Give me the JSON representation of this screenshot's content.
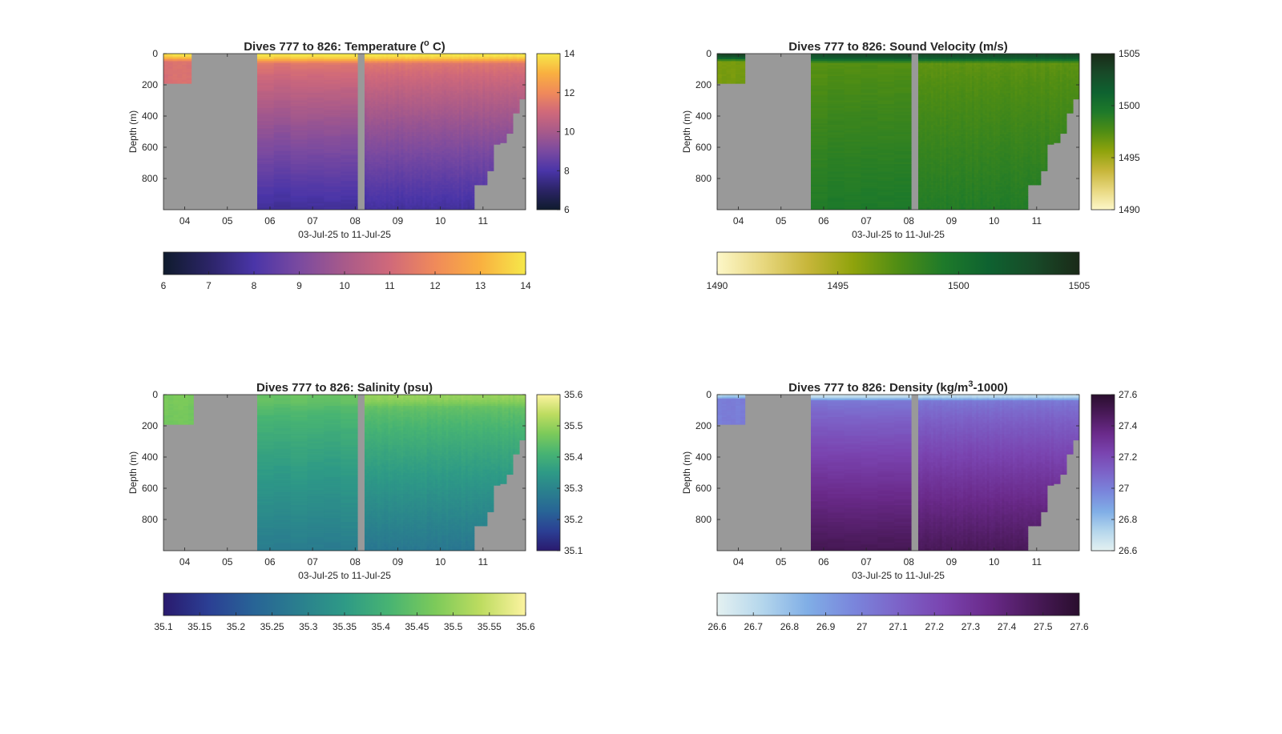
{
  "figure": {
    "background": "#ffffff",
    "missing_color": "#999999"
  },
  "chart_data": [
    {
      "id": "temperature",
      "type": "heatmap",
      "title": "Dives 777 to 826: Temperature (",
      "title_sup": "o",
      "title_end": " C)",
      "xlabel": "03-Jul-25 to 11-Jul-25",
      "ylabel": "Depth (m)",
      "x_range_days": [
        3.5,
        12.0
      ],
      "xticks": [
        "04",
        "05",
        "06",
        "07",
        "08",
        "09",
        "10",
        "11"
      ],
      "y_range": [
        0,
        1000
      ],
      "y_reversed": true,
      "yticks": [
        "0",
        "200",
        "400",
        "600",
        "800"
      ],
      "colorbar_range": [
        6,
        14
      ],
      "colorbar_ticks": [
        "6",
        "8",
        "10",
        "12",
        "14"
      ],
      "horizontal_colorbar_ticks": [
        "6",
        "7",
        "8",
        "9",
        "10",
        "11",
        "12",
        "13",
        "14"
      ],
      "colormap": [
        "#0f1b2d",
        "#2b2466",
        "#4a35a8",
        "#7a4aa0",
        "#a85a8a",
        "#d0697a",
        "#f08a5a",
        "#f9b040",
        "#f6e84a"
      ],
      "segments": [
        {
          "x_start": 3.5,
          "x_end": 4.15,
          "max_depth": [
            190,
            190
          ],
          "surface_value": 13.9,
          "mix_depth": 50,
          "mid_value": 11.3,
          "deep_value": 11.0
        },
        {
          "x_start": 5.7,
          "x_end": 8.05,
          "max_depth": [
            1000,
            1000
          ],
          "surface_value": 14.0,
          "mix_depth": 60,
          "mid_value": 11.5,
          "deep_value": 7.7
        },
        {
          "x_start": 8.22,
          "x_end": 12.0,
          "max_depth": [
            1000,
            1000,
            1000,
            1000,
            1000,
            1000,
            1000,
            1000,
            1000,
            1000,
            1000,
            1000,
            1000,
            1000,
            1000,
            1000,
            1000,
            840,
            840,
            750,
            580,
            570,
            510,
            380,
            290
          ],
          "surface_value": 14.0,
          "mix_depth": 60,
          "mid_value": 11.5,
          "deep_value": 7.8
        }
      ]
    },
    {
      "id": "sound_velocity",
      "type": "heatmap",
      "title": "Dives 777 to 826: Sound Velocity (m/s)",
      "title_sup": "",
      "title_end": "",
      "xlabel": "03-Jul-25 to 11-Jul-25",
      "ylabel": "Depth (m)",
      "x_range_days": [
        3.5,
        12.0
      ],
      "xticks": [
        "04",
        "05",
        "06",
        "07",
        "08",
        "09",
        "10",
        "11"
      ],
      "y_range": [
        0,
        1000
      ],
      "y_reversed": true,
      "yticks": [
        "0",
        "200",
        "400",
        "600",
        "800"
      ],
      "colorbar_range": [
        1490,
        1505
      ],
      "colorbar_ticks": [
        "1490",
        "1495",
        "1500",
        "1505"
      ],
      "horizontal_colorbar_ticks": [
        "1490",
        "1495",
        "1500",
        "1505"
      ],
      "colormap": [
        "#fdf7c8",
        "#e8d880",
        "#c7b63a",
        "#8fa30c",
        "#4f8d14",
        "#1e7a2a",
        "#0e6230",
        "#184a28",
        "#1a2a18"
      ],
      "segments": [
        {
          "x_start": 3.5,
          "x_end": 4.15,
          "max_depth": [
            190,
            190
          ],
          "surface_value": 1503.5,
          "mix_depth": 50,
          "mid_value": 1496.2,
          "deep_value": 1496.8
        },
        {
          "x_start": 5.7,
          "x_end": 8.05,
          "max_depth": [
            1000,
            1000
          ],
          "surface_value": 1503.0,
          "mix_depth": 60,
          "mid_value": 1497.2,
          "deep_value": 1499.4
        },
        {
          "x_start": 8.22,
          "x_end": 12.0,
          "max_depth": [
            1000,
            1000,
            1000,
            1000,
            1000,
            1000,
            1000,
            1000,
            1000,
            1000,
            1000,
            1000,
            1000,
            1000,
            1000,
            1000,
            1000,
            840,
            840,
            750,
            580,
            570,
            510,
            380,
            290
          ],
          "surface_value": 1503.0,
          "mix_depth": 60,
          "mid_value": 1497.0,
          "deep_value": 1499.2
        }
      ]
    },
    {
      "id": "salinity",
      "type": "heatmap",
      "title": "Dives 777 to 826: Salinity (psu)",
      "title_sup": "",
      "title_end": "",
      "xlabel": "03-Jul-25 to 11-Jul-25",
      "ylabel": "Depth (m)",
      "x_range_days": [
        3.5,
        12.0
      ],
      "xticks": [
        "04",
        "05",
        "06",
        "07",
        "08",
        "09",
        "10",
        "11"
      ],
      "y_range": [
        0,
        1000
      ],
      "y_reversed": true,
      "yticks": [
        "0",
        "200",
        "400",
        "600",
        "800"
      ],
      "colorbar_range": [
        35.1,
        35.6
      ],
      "colorbar_ticks": [
        "35.1",
        "35.2",
        "35.3",
        "35.4",
        "35.5",
        "35.6"
      ],
      "horizontal_colorbar_ticks": [
        "35.1",
        "35.15",
        "35.2",
        "35.25",
        "35.3",
        "35.35",
        "35.4",
        "35.45",
        "35.5",
        "35.55",
        "35.6"
      ],
      "colormap": [
        "#2a1a6e",
        "#2b3f94",
        "#286496",
        "#2a7f8e",
        "#2e9a86",
        "#48b472",
        "#7cca5a",
        "#bddc60",
        "#fcf3a0"
      ],
      "segments": [
        {
          "x_start": 3.5,
          "x_end": 4.2,
          "max_depth": [
            190,
            190
          ],
          "surface_value": 35.47,
          "mix_depth": 40,
          "mid_value": 35.47,
          "deep_value": 35.44
        },
        {
          "x_start": 5.7,
          "x_end": 8.05,
          "max_depth": [
            1000,
            1000
          ],
          "surface_value": 35.45,
          "mix_depth": 80,
          "mid_value": 35.43,
          "deep_value": 35.28
        },
        {
          "x_start": 8.22,
          "x_end": 12.0,
          "max_depth": [
            1000,
            1000,
            1000,
            1000,
            1000,
            1000,
            1000,
            1000,
            1000,
            1000,
            1000,
            1000,
            1000,
            1000,
            1000,
            1000,
            1000,
            840,
            840,
            750,
            580,
            570,
            510,
            380,
            290
          ],
          "surface_value": 35.5,
          "mix_depth": 80,
          "mid_value": 35.45,
          "deep_value": 35.27
        }
      ]
    },
    {
      "id": "density",
      "type": "heatmap",
      "title": "Dives 777 to 826: Density (kg/m",
      "title_sup": "3",
      "title_end": "-1000)",
      "xlabel": "03-Jul-25 to 11-Jul-25",
      "ylabel": "Depth (m)",
      "x_range_days": [
        3.5,
        12.0
      ],
      "xticks": [
        "04",
        "05",
        "06",
        "07",
        "08",
        "09",
        "10",
        "11"
      ],
      "y_range": [
        0,
        1000
      ],
      "y_reversed": true,
      "yticks": [
        "0",
        "200",
        "400",
        "600",
        "800"
      ],
      "colorbar_range": [
        26.6,
        27.6
      ],
      "colorbar_ticks": [
        "26.6",
        "26.8",
        "27",
        "27.2",
        "27.4",
        "27.6"
      ],
      "horizontal_colorbar_ticks": [
        "26.6",
        "26.7",
        "26.8",
        "26.9",
        "27",
        "27.1",
        "27.2",
        "27.3",
        "27.4",
        "27.5",
        "27.6"
      ],
      "colormap": [
        "#e4f1f1",
        "#b4d6ec",
        "#80aee6",
        "#7a86dc",
        "#7c63c8",
        "#7a44b0",
        "#6a2a8a",
        "#4a1a5a",
        "#2a0e2e"
      ],
      "segments": [
        {
          "x_start": 3.5,
          "x_end": 4.15,
          "max_depth": [
            190,
            190
          ],
          "surface_value": 26.72,
          "mix_depth": 30,
          "mid_value": 27.0,
          "deep_value": 27.02
        },
        {
          "x_start": 5.7,
          "x_end": 8.05,
          "max_depth": [
            1000,
            1000
          ],
          "surface_value": 26.66,
          "mix_depth": 40,
          "mid_value": 27.02,
          "deep_value": 27.5
        },
        {
          "x_start": 8.22,
          "x_end": 12.0,
          "max_depth": [
            1000,
            1000,
            1000,
            1000,
            1000,
            1000,
            1000,
            1000,
            1000,
            1000,
            1000,
            1000,
            1000,
            1000,
            1000,
            1000,
            1000,
            840,
            840,
            750,
            580,
            570,
            510,
            380,
            290
          ],
          "surface_value": 26.68,
          "mix_depth": 40,
          "mid_value": 27.02,
          "deep_value": 27.48
        }
      ]
    }
  ]
}
